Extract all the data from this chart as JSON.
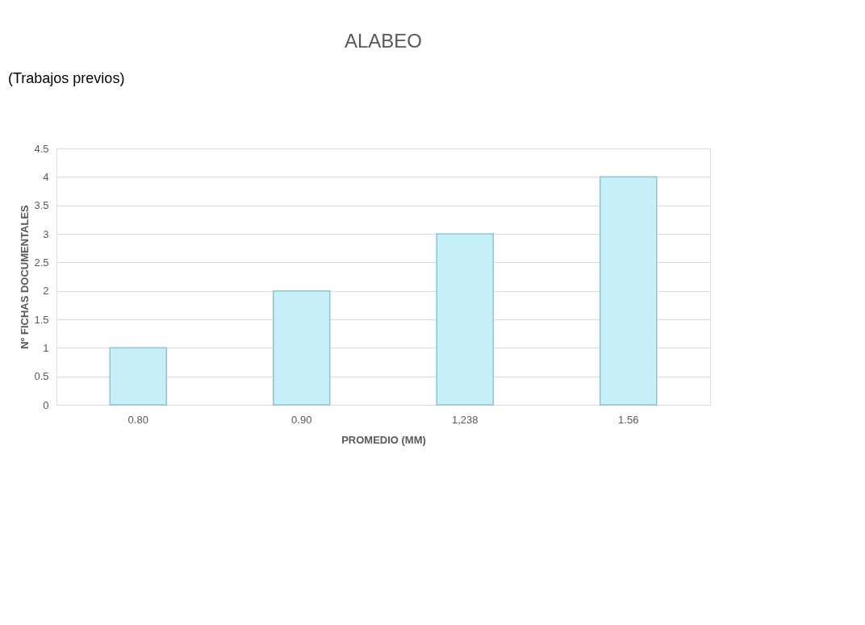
{
  "chart_data": {
    "type": "bar",
    "title": "ALABEO",
    "xlabel": "PROMEDIO (MM)",
    "ylabel": "Nº FICHAS DOCUMENTALES",
    "categories": [
      "0.80",
      "0.90",
      "1,238",
      "1.56"
    ],
    "values": [
      1,
      2,
      3,
      4
    ],
    "color": "#c6eff9",
    "ylim": [
      0,
      4.5
    ],
    "yticks": [
      0,
      0.5,
      1,
      1.5,
      2,
      2.5,
      3,
      3.5,
      4,
      4.5
    ],
    "grid": "y",
    "annotations": [
      "(Trabajos previos)"
    ]
  }
}
